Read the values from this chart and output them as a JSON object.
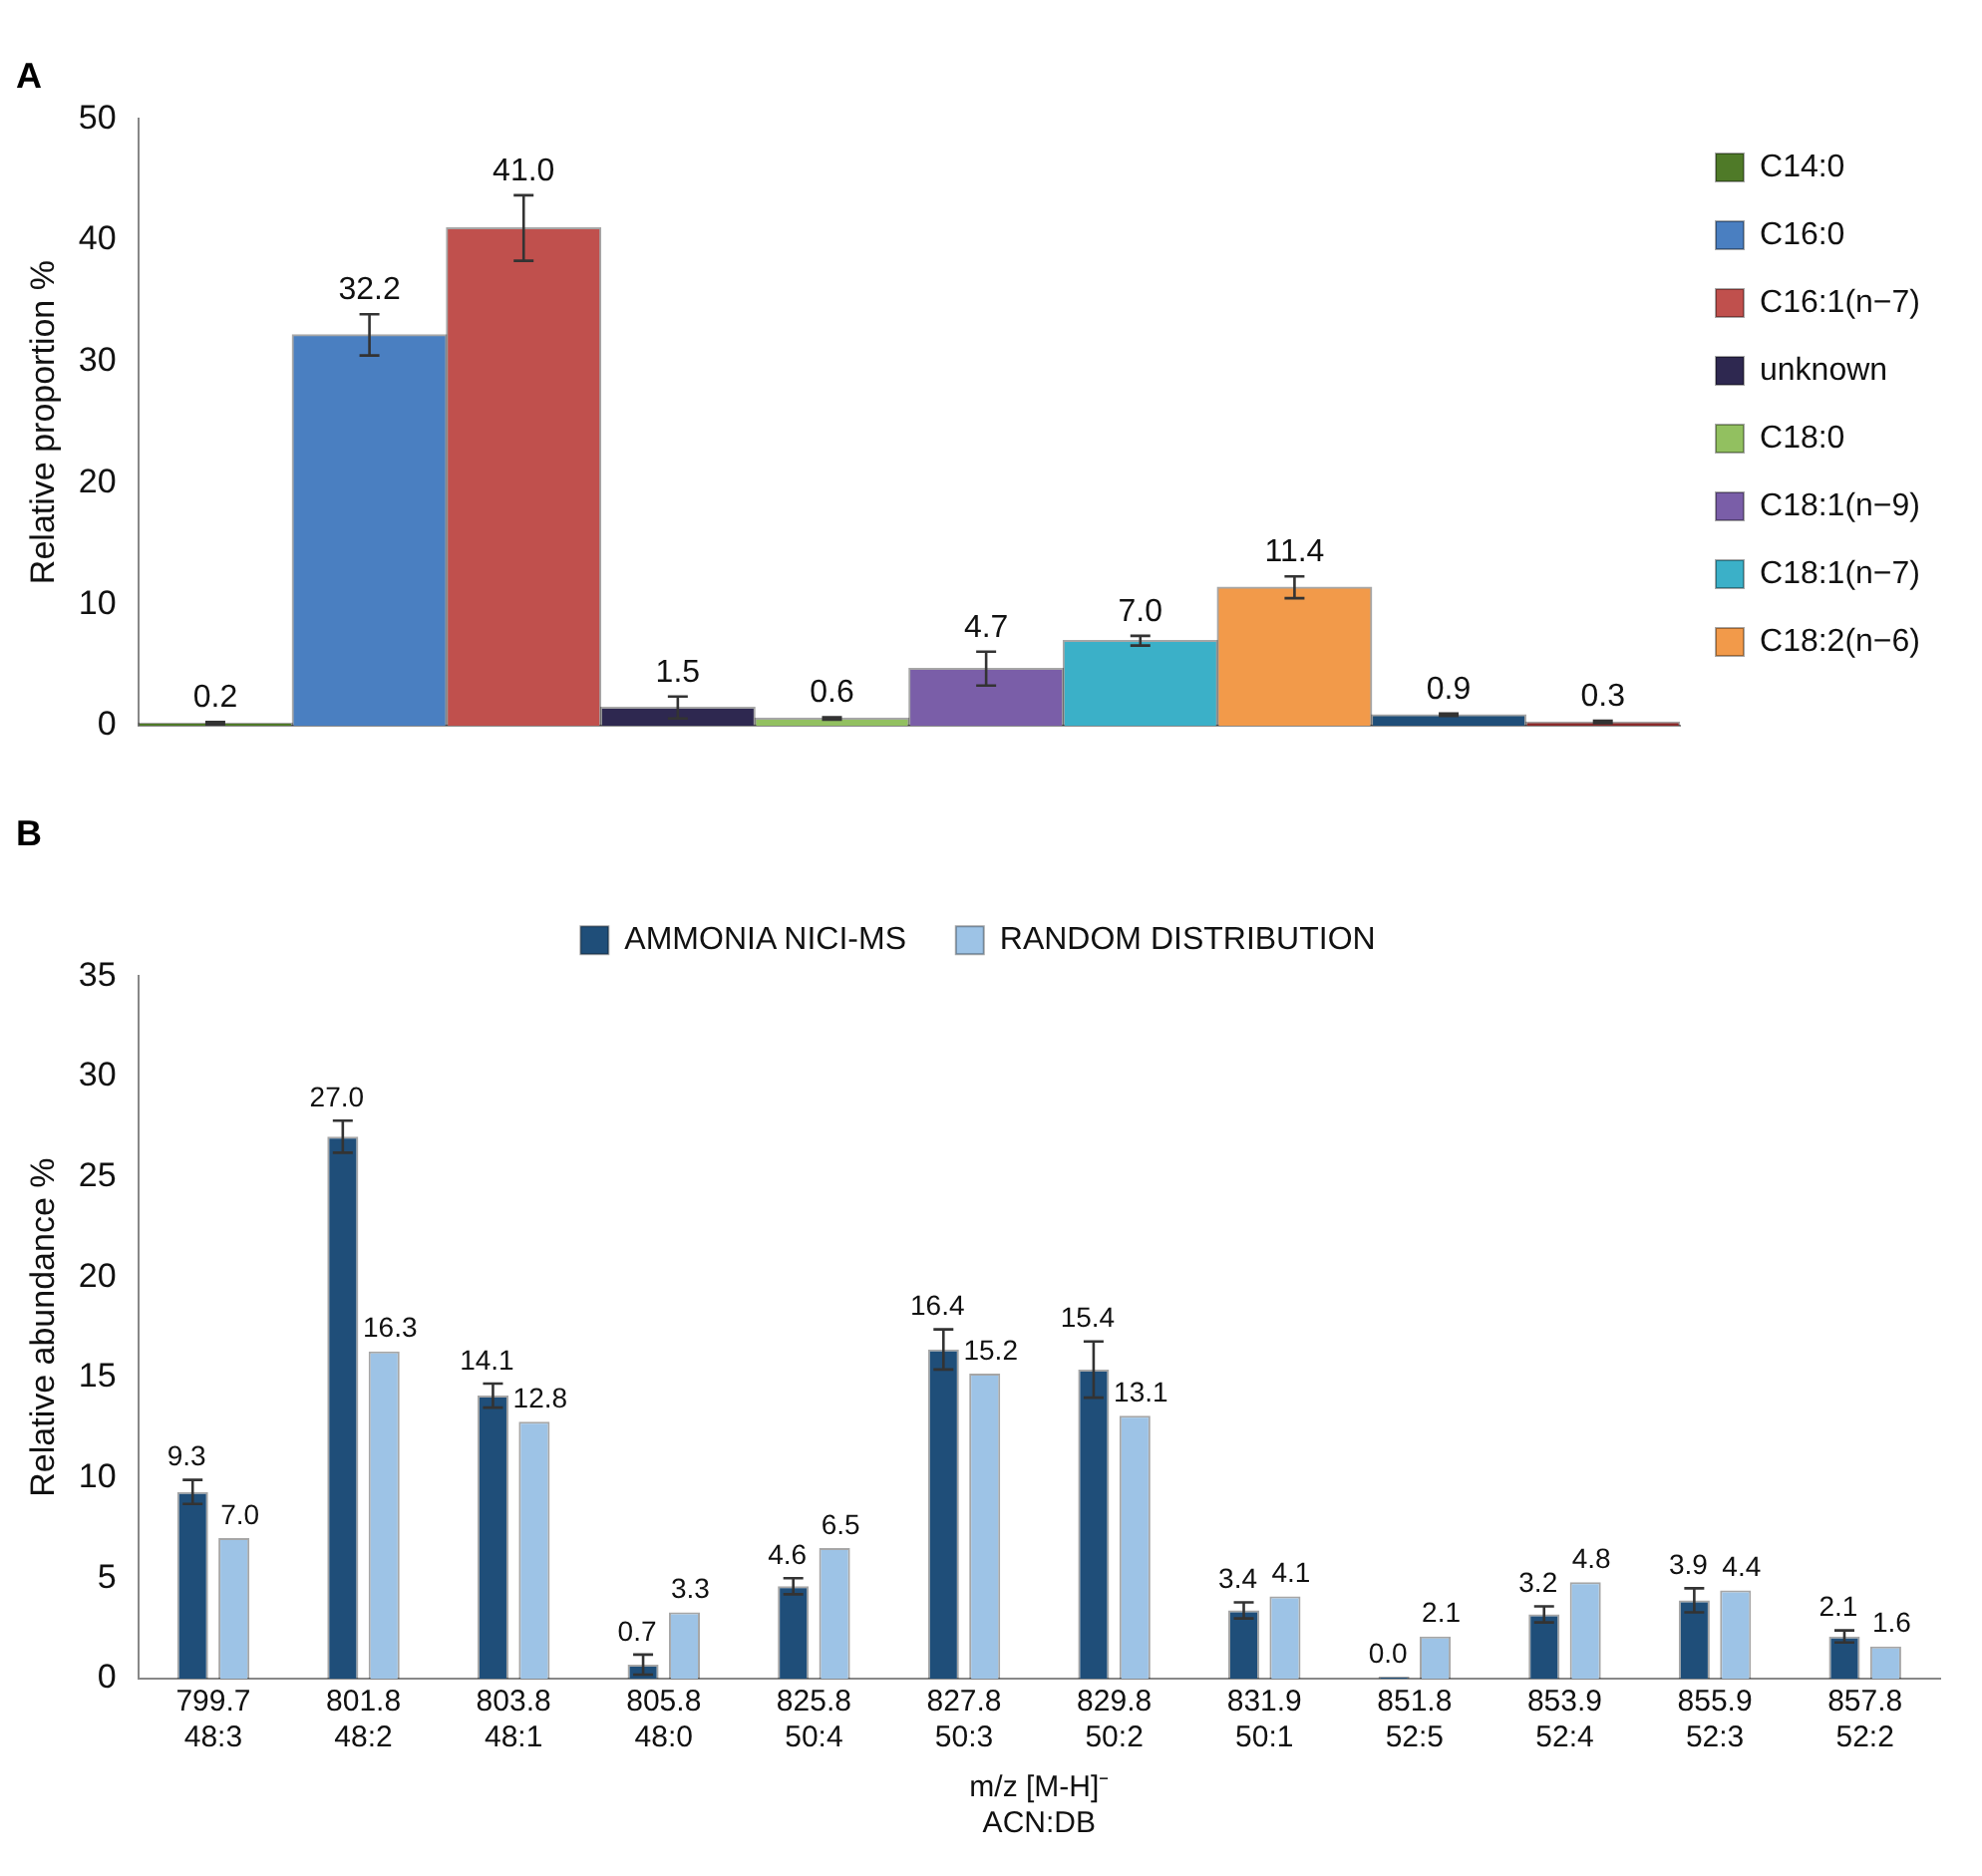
{
  "chart_data": [
    {
      "type": "bar",
      "title": "A",
      "ylabel": "Relative proportion %",
      "categories": [
        null,
        null,
        null,
        null,
        null,
        null,
        null,
        null,
        null,
        null
      ],
      "ylim": [
        0,
        50
      ],
      "yticks": [
        0,
        10,
        20,
        30,
        40,
        50
      ],
      "grid": false,
      "legend": "right",
      "series": [
        {
          "name": "C14:0",
          "color": "#4f7a28",
          "values": [
            0.2,
            null,
            null,
            null,
            null,
            null,
            null,
            null,
            null,
            null
          ],
          "errors": [
            0.1,
            null,
            null,
            null,
            null,
            null,
            null,
            null,
            null,
            null
          ],
          "value_labels": [
            "0.2",
            null,
            null,
            null,
            null,
            null,
            null,
            null,
            null,
            null
          ]
        },
        {
          "name": "C16:0",
          "color": "#4a7fc1",
          "values": [
            null,
            32.2,
            null,
            null,
            null,
            null,
            null,
            null,
            null,
            null
          ],
          "errors": [
            null,
            1.7,
            null,
            null,
            null,
            null,
            null,
            null,
            null,
            null
          ],
          "value_labels": [
            null,
            "32.2",
            null,
            null,
            null,
            null,
            null,
            null,
            null,
            null
          ]
        },
        {
          "name": "C16:1(n−7)",
          "color": "#c0504d",
          "values": [
            null,
            null,
            41.0,
            null,
            null,
            null,
            null,
            null,
            null,
            null
          ],
          "errors": [
            null,
            null,
            2.7,
            null,
            null,
            null,
            null,
            null,
            null,
            null
          ],
          "value_labels": [
            null,
            null,
            "41.0",
            null,
            null,
            null,
            null,
            null,
            null,
            null
          ]
        },
        {
          "name": "unknown",
          "color": "#2e2850",
          "values": [
            null,
            null,
            null,
            1.5,
            null,
            null,
            null,
            null,
            null,
            null
          ],
          "errors": [
            null,
            null,
            null,
            0.9,
            null,
            null,
            null,
            null,
            null,
            null
          ],
          "value_labels": [
            null,
            null,
            null,
            "1.5",
            null,
            null,
            null,
            null,
            null,
            null
          ]
        },
        {
          "name": "C18:0",
          "color": "#92c060",
          "values": [
            null,
            null,
            null,
            null,
            0.6,
            null,
            null,
            null,
            null,
            null
          ],
          "errors": [
            null,
            null,
            null,
            null,
            0.1,
            null,
            null,
            null,
            null,
            null
          ],
          "value_labels": [
            null,
            null,
            null,
            null,
            "0.6",
            null,
            null,
            null,
            null,
            null
          ]
        },
        {
          "name": "C18:1(n−9)",
          "color": "#7a5ea8",
          "values": [
            null,
            null,
            null,
            null,
            null,
            4.7,
            null,
            null,
            null,
            null
          ],
          "errors": [
            null,
            null,
            null,
            null,
            null,
            1.4,
            null,
            null,
            null,
            null
          ],
          "value_labels": [
            null,
            null,
            null,
            null,
            null,
            "4.7",
            null,
            null,
            null,
            null
          ]
        },
        {
          "name": "C18:1(n−7)",
          "color": "#3bb0c8",
          "values": [
            null,
            null,
            null,
            null,
            null,
            null,
            7.0,
            null,
            null,
            null
          ],
          "errors": [
            null,
            null,
            null,
            null,
            null,
            null,
            0.4,
            null,
            null,
            null
          ],
          "value_labels": [
            null,
            null,
            null,
            null,
            null,
            null,
            "7.0",
            null,
            null,
            null
          ]
        },
        {
          "name": "C18:2(n−6)",
          "color": "#f29a4a",
          "values": [
            null,
            null,
            null,
            null,
            null,
            null,
            null,
            11.4,
            null,
            null
          ],
          "errors": [
            null,
            null,
            null,
            null,
            null,
            null,
            null,
            0.9,
            null,
            null
          ],
          "value_labels": [
            null,
            null,
            null,
            null,
            null,
            null,
            null,
            "11.4",
            null,
            null
          ]
        },
        {
          "color": "#1f4e79",
          "values": [
            null,
            null,
            null,
            null,
            null,
            null,
            null,
            null,
            0.9,
            null
          ],
          "errors": [
            null,
            null,
            null,
            null,
            null,
            null,
            null,
            null,
            0.1,
            null
          ],
          "value_labels": [
            null,
            null,
            null,
            null,
            null,
            null,
            null,
            null,
            "0.9",
            null
          ]
        },
        {
          "color": "#8b2a2a",
          "values": [
            null,
            null,
            null,
            null,
            null,
            null,
            null,
            null,
            null,
            0.3
          ],
          "errors": [
            null,
            null,
            null,
            null,
            null,
            null,
            null,
            null,
            null,
            0.1
          ],
          "value_labels": [
            null,
            null,
            null,
            null,
            null,
            null,
            null,
            null,
            null,
            "0.3"
          ]
        }
      ]
    },
    {
      "type": "bar",
      "title": "B",
      "ylabel": "Relative abundance %",
      "xlabel": "m/z [M-H]⁻\nACN:DB",
      "categories": [
        "799.7\n48:3",
        "801.8\n48:2",
        "803.8\n48:1",
        "805.8\n48:0",
        "825.8\n50:4",
        "827.8\n50:3",
        "829.8\n50:2",
        "831.9\n50:1",
        "851.8\n52:5",
        "853.9\n52:4",
        "855.9\n52:3",
        "857.8\n52:2"
      ],
      "ylim": [
        0,
        35
      ],
      "yticks": [
        0,
        5,
        10,
        15,
        20,
        25,
        30,
        35
      ],
      "grid": false,
      "legend": "top",
      "series": [
        {
          "name": "AMMONIA NICI-MS",
          "color": "#1f4e79",
          "values": [
            9.3,
            27.0,
            14.1,
            0.7,
            4.6,
            16.4,
            15.4,
            3.4,
            0.0,
            3.2,
            3.9,
            2.1
          ],
          "errors": [
            0.6,
            0.8,
            0.6,
            0.5,
            0.4,
            1.0,
            1.4,
            0.4,
            null,
            0.4,
            0.6,
            0.3
          ],
          "value_labels": [
            "9.3",
            "27.0",
            "14.1",
            "0.7",
            "4.6",
            "16.4",
            "15.4",
            "3.4",
            "0.0",
            "3.2",
            "3.9",
            "2.1"
          ]
        },
        {
          "name": "RANDOM DISTRIBUTION",
          "color": "#9dc3e6",
          "values": [
            7.0,
            16.3,
            12.8,
            3.3,
            6.5,
            15.2,
            13.1,
            4.1,
            2.1,
            4.8,
            4.4,
            1.6
          ],
          "value_labels": [
            "7.0",
            "16.3",
            "12.8",
            "3.3",
            "6.5",
            "15.2",
            "13.1",
            "4.1",
            "2.1",
            "4.8",
            "4.4",
            "1.6"
          ]
        }
      ]
    }
  ]
}
